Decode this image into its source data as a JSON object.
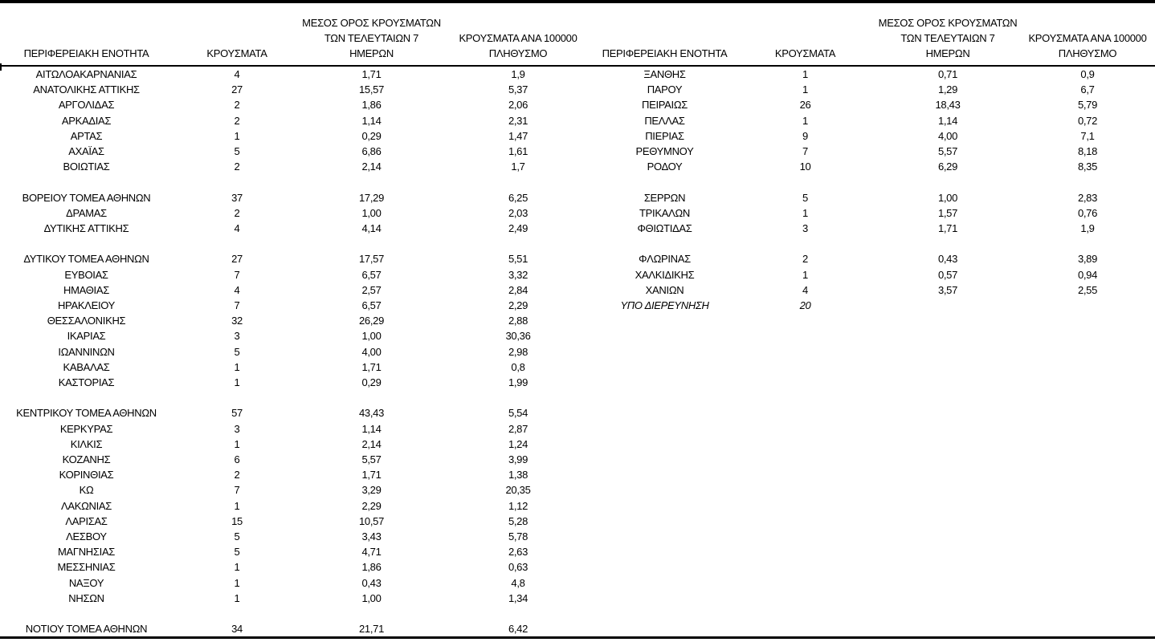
{
  "table": {
    "columns": [
      {
        "key": "region",
        "label_lines": [
          "ΠΕΡΙΦΕΡΕΙΑΚΗ ΕΝΟΤΗΤΑ"
        ]
      },
      {
        "key": "cases",
        "label_lines": [
          "ΚΡΟΥΣΜΑΤΑ"
        ]
      },
      {
        "key": "avg7",
        "label_lines": [
          "ΜΕΣΟΣ ΟΡΟΣ ΚΡΟΥΣΜΑΤΩΝ",
          "ΤΩΝ ΤΕΛΕΥΤΑΙΩΝ 7",
          "ΗΜΕΡΩΝ"
        ]
      },
      {
        "key": "per100k",
        "label_lines": [
          "ΚΡΟΥΣΜΑΤΑ ΑΝΑ 100000",
          "ΠΛΗΘΥΣΜΟ"
        ]
      }
    ],
    "row_format": [
      "region",
      "cases",
      "avg7",
      "per100k",
      "italic_flag"
    ],
    "left_rows": [
      [
        "ΑΙΤΩΛΟΑΚΑΡΝΑΝΙΑΣ",
        "4",
        "1,71",
        "1,9"
      ],
      [
        "ΑΝΑΤΟΛΙΚΗΣ ΑΤΤΙΚΗΣ",
        "27",
        "15,57",
        "5,37"
      ],
      [
        "ΑΡΓΟΛΙΔΑΣ",
        "2",
        "1,86",
        "2,06"
      ],
      [
        "ΑΡΚΑΔΙΑΣ",
        "2",
        "1,14",
        "2,31"
      ],
      [
        "ΑΡΤΑΣ",
        "1",
        "0,29",
        "1,47"
      ],
      [
        "ΑΧΑΪΑΣ",
        "5",
        "6,86",
        "1,61"
      ],
      [
        "ΒΟΙΩΤΙΑΣ",
        "2",
        "2,14",
        "1,7"
      ],
      null,
      [
        "ΒΟΡΕΙΟΥ ΤΟΜΕΑ ΑΘΗΝΩΝ",
        "37",
        "17,29",
        "6,25"
      ],
      [
        "ΔΡΑΜΑΣ",
        "2",
        "1,00",
        "2,03"
      ],
      [
        "ΔΥΤΙΚΗΣ ΑΤΤΙΚΗΣ",
        "4",
        "4,14",
        "2,49"
      ],
      null,
      [
        "ΔΥΤΙΚΟΥ ΤΟΜΕΑ ΑΘΗΝΩΝ",
        "27",
        "17,57",
        "5,51"
      ],
      [
        "ΕΥΒΟΙΑΣ",
        "7",
        "6,57",
        "3,32"
      ],
      [
        "ΗΜΑΘΙΑΣ",
        "4",
        "2,57",
        "2,84"
      ],
      [
        "ΗΡΑΚΛΕΙΟΥ",
        "7",
        "6,57",
        "2,29"
      ],
      [
        "ΘΕΣΣΑΛΟΝΙΚΗΣ",
        "32",
        "26,29",
        "2,88"
      ],
      [
        "ΙΚΑΡΙΑΣ",
        "3",
        "1,00",
        "30,36"
      ],
      [
        "ΙΩΑΝΝΙΝΩΝ",
        "5",
        "4,00",
        "2,98"
      ],
      [
        "ΚΑΒΑΛΑΣ",
        "1",
        "1,71",
        "0,8"
      ],
      [
        "ΚΑΣΤΟΡΙΑΣ",
        "1",
        "0,29",
        "1,99"
      ],
      null,
      [
        "ΚΕΝΤΡΙΚΟΥ ΤΟΜΕΑ ΑΘΗΝΩΝ",
        "57",
        "43,43",
        "5,54"
      ],
      [
        "ΚΕΡΚΥΡΑΣ",
        "3",
        "1,14",
        "2,87"
      ],
      [
        "ΚΙΛΚΙΣ",
        "1",
        "2,14",
        "1,24"
      ],
      [
        "ΚΟΖΑΝΗΣ",
        "6",
        "5,57",
        "3,99"
      ],
      [
        "ΚΟΡΙΝΘΙΑΣ",
        "2",
        "1,71",
        "1,38"
      ],
      [
        "ΚΩ",
        "7",
        "3,29",
        "20,35"
      ],
      [
        "ΛΑΚΩΝΙΑΣ",
        "1",
        "2,29",
        "1,12"
      ],
      [
        "ΛΑΡΙΣΑΣ",
        "15",
        "10,57",
        "5,28"
      ],
      [
        "ΛΕΣΒΟΥ",
        "5",
        "3,43",
        "5,78"
      ],
      [
        "ΜΑΓΝΗΣΙΑΣ",
        "5",
        "4,71",
        "2,63"
      ],
      [
        "ΜΕΣΣΗΝΙΑΣ",
        "1",
        "1,86",
        "0,63"
      ],
      [
        "ΝΑΞΟΥ",
        "1",
        "0,43",
        "4,8"
      ],
      [
        "ΝΗΣΩΝ",
        "1",
        "1,00",
        "1,34"
      ],
      null,
      [
        "ΝΟΤΙΟΥ ΤΟΜΕΑ ΑΘΗΝΩΝ",
        "34",
        "21,71",
        "6,42"
      ]
    ],
    "right_rows": [
      [
        "ΞΑΝΘΗΣ",
        "1",
        "0,71",
        "0,9"
      ],
      [
        "ΠΑΡΟΥ",
        "1",
        "1,29",
        "6,7"
      ],
      [
        "ΠΕΙΡΑΙΩΣ",
        "26",
        "18,43",
        "5,79"
      ],
      [
        "ΠΕΛΛΑΣ",
        "1",
        "1,14",
        "0,72"
      ],
      [
        "ΠΙΕΡΙΑΣ",
        "9",
        "4,00",
        "7,1"
      ],
      [
        "ΡΕΘΥΜΝΟΥ",
        "7",
        "5,57",
        "8,18"
      ],
      [
        "ΡΟΔΟΥ",
        "10",
        "6,29",
        "8,35"
      ],
      null,
      [
        "ΣΕΡΡΩΝ",
        "5",
        "1,00",
        "2,83"
      ],
      [
        "ΤΡΙΚΑΛΩΝ",
        "1",
        "1,57",
        "0,76"
      ],
      [
        "ΦΘΙΩΤΙΔΑΣ",
        "3",
        "1,71",
        "1,9"
      ],
      null,
      [
        "ΦΛΩΡΙΝΑΣ",
        "2",
        "0,43",
        "3,89"
      ],
      [
        "ΧΑΛΚΙΔΙΚΗΣ",
        "1",
        "0,57",
        "0,94"
      ],
      [
        "ΧΑΝΙΩΝ",
        "4",
        "3,57",
        "2,55"
      ],
      [
        "ΥΠΟ ΔΙΕΡΕΥΝΗΣΗ",
        "20",
        "",
        "",
        true
      ]
    ],
    "colors": {
      "text": "#000000",
      "background": "#ffffff",
      "border": "#000000"
    }
  }
}
